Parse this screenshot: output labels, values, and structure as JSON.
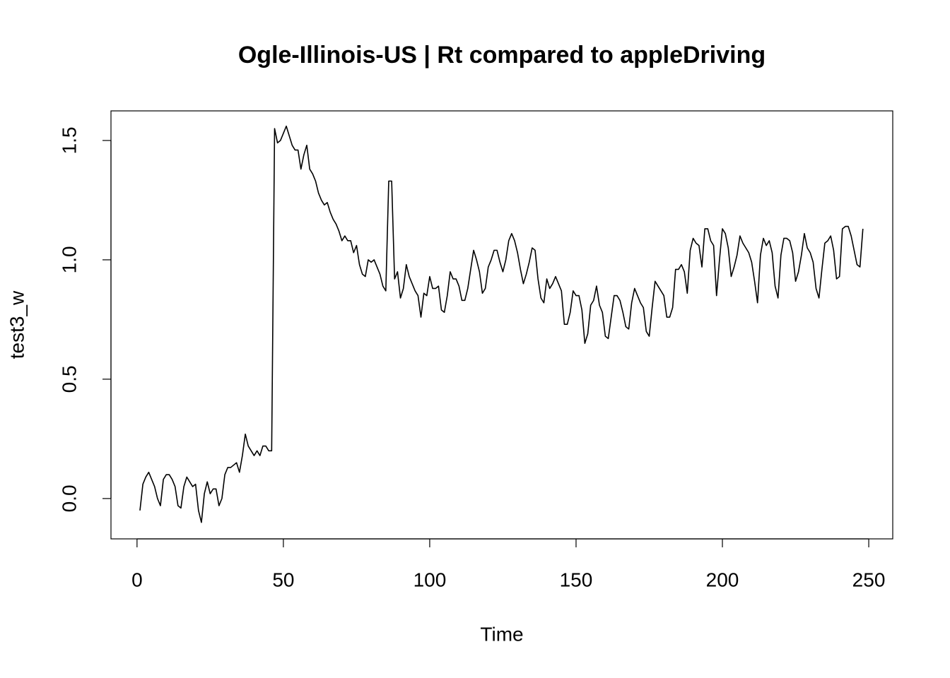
{
  "chart_data": {
    "type": "line",
    "title": "Ogle-Illinois-US | Rt compared to appleDriving",
    "x_label": "Time",
    "y_label": "test3_w",
    "x": [
      1,
      2,
      3,
      4,
      5,
      6,
      7,
      8,
      9,
      10,
      11,
      12,
      13,
      14,
      15,
      16,
      17,
      18,
      19,
      20,
      21,
      22,
      23,
      24,
      25,
      26,
      27,
      28,
      29,
      30,
      31,
      32,
      33,
      34,
      35,
      36,
      37,
      38,
      39,
      40,
      41,
      42,
      43,
      44,
      45,
      46,
      47,
      48,
      49,
      50,
      51,
      52,
      53,
      54,
      55,
      56,
      57,
      58,
      59,
      60,
      61,
      62,
      63,
      64,
      65,
      66,
      67,
      68,
      69,
      70,
      71,
      72,
      73,
      74,
      75,
      76,
      77,
      78,
      79,
      80,
      81,
      82,
      83,
      84,
      85,
      86,
      87,
      88,
      89,
      90,
      91,
      92,
      93,
      94,
      95,
      96,
      97,
      98,
      99,
      100,
      101,
      102,
      103,
      104,
      105,
      106,
      107,
      108,
      109,
      110,
      111,
      112,
      113,
      114,
      115,
      116,
      117,
      118,
      119,
      120,
      121,
      122,
      123,
      124,
      125,
      126,
      127,
      128,
      129,
      130,
      131,
      132,
      133,
      134,
      135,
      136,
      137,
      138,
      139,
      140,
      141,
      142,
      143,
      144,
      145,
      146,
      147,
      148,
      149,
      150,
      151,
      152,
      153,
      154,
      155,
      156,
      157,
      158,
      159,
      160,
      161,
      162,
      163,
      164,
      165,
      166,
      167,
      168,
      169,
      170,
      171,
      172,
      173,
      174,
      175,
      176,
      177,
      178,
      179,
      180,
      181,
      182,
      183,
      184,
      185,
      186,
      187,
      188,
      189,
      190,
      191,
      192,
      193,
      194,
      195,
      196,
      197,
      198,
      199,
      200,
      201,
      202,
      203,
      204,
      205,
      206,
      207,
      208,
      209,
      210,
      211,
      212,
      213,
      214,
      215,
      216,
      217,
      218,
      219,
      220,
      221,
      222,
      223,
      224,
      225,
      226,
      227,
      228,
      229,
      230,
      231,
      232,
      233,
      234,
      235,
      236,
      237,
      238,
      239,
      240,
      241,
      242,
      243,
      244,
      245,
      246,
      247,
      248
    ],
    "series": [
      {
        "name": "test3_w",
        "color": "#000000",
        "values": [
          -0.05,
          0.06,
          0.09,
          0.11,
          0.08,
          0.05,
          0.0,
          -0.03,
          0.08,
          0.1,
          0.1,
          0.08,
          0.05,
          -0.03,
          -0.04,
          0.05,
          0.09,
          0.07,
          0.05,
          0.06,
          -0.05,
          -0.1,
          0.02,
          0.07,
          0.02,
          0.04,
          0.04,
          -0.03,
          0.0,
          0.1,
          0.13,
          0.13,
          0.14,
          0.15,
          0.11,
          0.18,
          0.27,
          0.22,
          0.2,
          0.18,
          0.2,
          0.18,
          0.22,
          0.22,
          0.2,
          0.2,
          1.55,
          1.49,
          1.5,
          1.53,
          1.56,
          1.52,
          1.48,
          1.46,
          1.46,
          1.38,
          1.44,
          1.48,
          1.38,
          1.36,
          1.33,
          1.28,
          1.25,
          1.23,
          1.24,
          1.2,
          1.17,
          1.15,
          1.12,
          1.08,
          1.1,
          1.08,
          1.08,
          1.03,
          1.06,
          0.98,
          0.94,
          0.93,
          1.0,
          0.99,
          1.0,
          0.97,
          0.94,
          0.89,
          0.87,
          1.33,
          1.33,
          0.92,
          0.95,
          0.84,
          0.88,
          0.98,
          0.93,
          0.9,
          0.87,
          0.85,
          0.76,
          0.86,
          0.85,
          0.93,
          0.88,
          0.88,
          0.89,
          0.79,
          0.78,
          0.85,
          0.95,
          0.92,
          0.92,
          0.89,
          0.83,
          0.83,
          0.88,
          0.96,
          1.04,
          1.0,
          0.95,
          0.86,
          0.88,
          0.97,
          1.0,
          1.04,
          1.04,
          0.99,
          0.95,
          1.0,
          1.08,
          1.11,
          1.08,
          1.03,
          0.96,
          0.9,
          0.94,
          0.99,
          1.05,
          1.04,
          0.92,
          0.84,
          0.82,
          0.92,
          0.88,
          0.9,
          0.93,
          0.9,
          0.87,
          0.73,
          0.73,
          0.78,
          0.87,
          0.85,
          0.85,
          0.79,
          0.65,
          0.69,
          0.81,
          0.83,
          0.89,
          0.81,
          0.78,
          0.68,
          0.67,
          0.76,
          0.85,
          0.85,
          0.83,
          0.78,
          0.72,
          0.71,
          0.82,
          0.88,
          0.85,
          0.82,
          0.8,
          0.7,
          0.68,
          0.8,
          0.91,
          0.89,
          0.87,
          0.85,
          0.76,
          0.76,
          0.8,
          0.96,
          0.96,
          0.98,
          0.95,
          0.86,
          1.04,
          1.09,
          1.07,
          1.06,
          0.97,
          1.13,
          1.13,
          1.08,
          1.06,
          0.85,
          1.0,
          1.13,
          1.11,
          1.05,
          0.93,
          0.97,
          1.02,
          1.1,
          1.07,
          1.05,
          1.03,
          0.99,
          0.91,
          0.82,
          1.02,
          1.09,
          1.06,
          1.08,
          1.03,
          0.89,
          0.84,
          1.02,
          1.09,
          1.09,
          1.08,
          1.03,
          0.91,
          0.95,
          1.02,
          1.11,
          1.05,
          1.03,
          0.99,
          0.88,
          0.84,
          0.96,
          1.07,
          1.08,
          1.1,
          1.04,
          0.92,
          0.93,
          1.13,
          1.14,
          1.14,
          1.1,
          1.04,
          0.98,
          0.97,
          1.13
        ]
      }
    ],
    "xlim": [
      -8.9,
      258.2
    ],
    "ylim": [
      -0.169,
      1.624
    ],
    "xticks": [
      0,
      50,
      100,
      150,
      200,
      250
    ],
    "yticks": [
      {
        "value": 0,
        "label": "0.0"
      },
      0.5,
      {
        "value": 1,
        "label": "1.0"
      },
      1.5
    ],
    "grid": false
  }
}
